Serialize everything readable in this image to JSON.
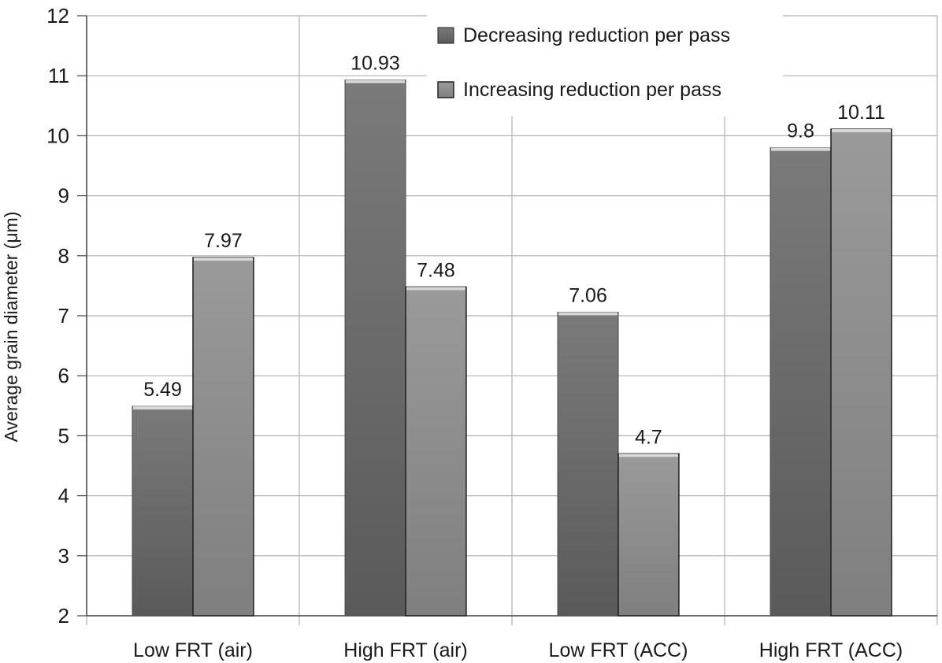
{
  "chart_data": {
    "type": "bar",
    "title": "",
    "xlabel": "",
    "ylabel": "Average grain diameter (μm)",
    "ylim": [
      2,
      12
    ],
    "yticks": [
      2,
      3,
      4,
      5,
      6,
      7,
      8,
      9,
      10,
      11,
      12
    ],
    "categories": [
      "Low FRT (air)",
      "High FRT (air)",
      "Low FRT (ACC)",
      "High FRT (ACC)"
    ],
    "series": [
      {
        "name": "Decreasing reduction per pass",
        "values": [
          5.49,
          10.93,
          7.06,
          9.8
        ],
        "labels": [
          "5.49",
          "10.93",
          "7.06",
          "9.8"
        ],
        "color": "#6b6b6b"
      },
      {
        "name": "Increasing reduction per pass",
        "values": [
          7.97,
          7.48,
          4.7,
          10.11
        ],
        "labels": [
          "7.97",
          "7.48",
          "4.7",
          "10.11"
        ],
        "color": "#8d8d8d"
      }
    ],
    "grid": true,
    "legend": "top-right"
  }
}
